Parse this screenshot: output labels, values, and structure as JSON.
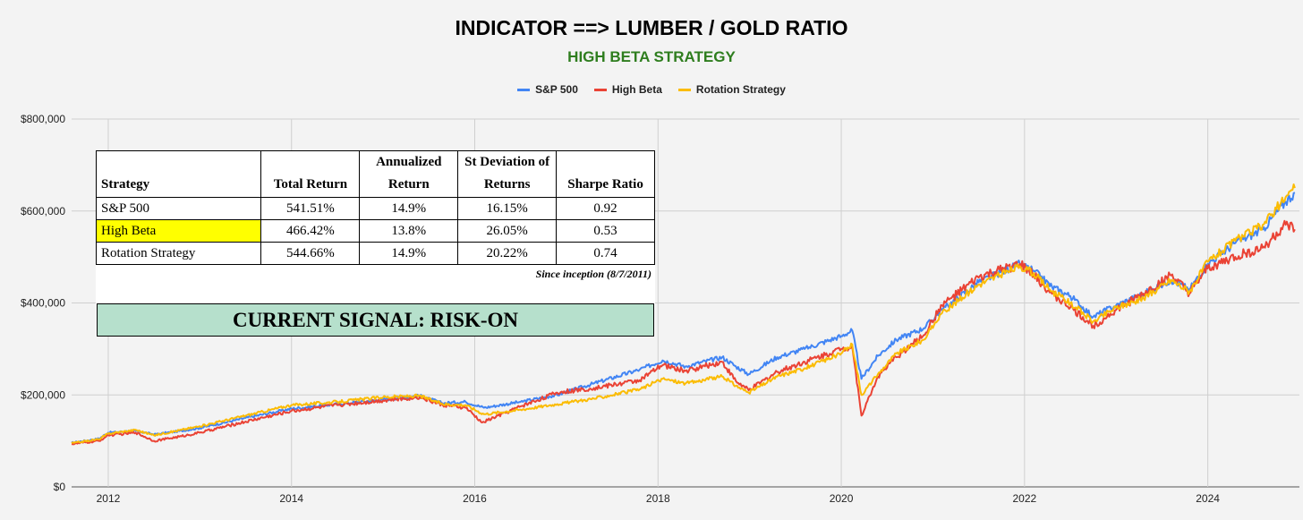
{
  "chart_data": {
    "type": "line",
    "title": "INDICATOR ==> LUMBER / GOLD RATIO",
    "subtitle": "HIGH BETA STRATEGY",
    "y_ticks": [
      "$0",
      "$200,000",
      "$400,000",
      "$600,000",
      "$800,000"
    ],
    "x_ticks": [
      "2012",
      "2014",
      "2016",
      "2018",
      "2020",
      "2022",
      "2024"
    ],
    "xlim": [
      2011.6,
      2025.0
    ],
    "ylim": [
      0,
      800000
    ],
    "series": [
      {
        "name": "S&P 500",
        "color": "#4285f4",
        "x": [
          2011.6,
          2011.9,
          2012.0,
          2012.3,
          2012.5,
          2012.8,
          2013.0,
          2013.5,
          2014.0,
          2014.5,
          2015.0,
          2015.4,
          2015.65,
          2015.9,
          2016.1,
          2016.5,
          2016.9,
          2017.3,
          2017.8,
          2018.05,
          2018.3,
          2018.7,
          2018.85,
          2018.99,
          2019.3,
          2019.6,
          2020.0,
          2020.12,
          2020.22,
          2020.4,
          2020.6,
          2020.9,
          2021.1,
          2021.5,
          2021.95,
          2022.1,
          2022.3,
          2022.5,
          2022.75,
          2023.0,
          2023.3,
          2023.6,
          2023.8,
          2024.0,
          2024.3,
          2024.6,
          2024.85,
          2024.95
        ],
        "values": [
          96000,
          105000,
          118000,
          122000,
          114000,
          122000,
          128000,
          150000,
          170000,
          180000,
          190000,
          198000,
          182000,
          185000,
          172000,
          185000,
          200000,
          225000,
          255000,
          275000,
          262000,
          282000,
          262000,
          245000,
          282000,
          300000,
          328000,
          340000,
          235000,
          285000,
          320000,
          345000,
          385000,
          445000,
          485000,
          470000,
          435000,
          415000,
          370000,
          395000,
          420000,
          450000,
          430000,
          485000,
          530000,
          560000,
          620000,
          640000
        ]
      },
      {
        "name": "High Beta",
        "color": "#ea4335",
        "x": [
          2011.6,
          2011.9,
          2012.0,
          2012.3,
          2012.5,
          2012.8,
          2013.0,
          2013.5,
          2014.0,
          2014.5,
          2015.0,
          2015.4,
          2015.65,
          2015.9,
          2016.08,
          2016.5,
          2016.9,
          2017.3,
          2017.8,
          2018.05,
          2018.3,
          2018.7,
          2018.85,
          2018.99,
          2019.3,
          2019.6,
          2020.0,
          2020.12,
          2020.22,
          2020.4,
          2020.6,
          2020.9,
          2021.1,
          2021.5,
          2021.95,
          2022.1,
          2022.3,
          2022.5,
          2022.75,
          2023.0,
          2023.3,
          2023.6,
          2023.8,
          2024.0,
          2024.3,
          2024.6,
          2024.85,
          2024.95
        ],
        "values": [
          93000,
          100000,
          112000,
          118000,
          100000,
          110000,
          118000,
          142000,
          165000,
          178000,
          188000,
          195000,
          178000,
          172000,
          140000,
          175000,
          205000,
          215000,
          232000,
          265000,
          252000,
          272000,
          230000,
          210000,
          250000,
          272000,
          300000,
          305000,
          155000,
          240000,
          282000,
          330000,
          395000,
          455000,
          485000,
          460000,
          420000,
          390000,
          350000,
          385000,
          420000,
          460000,
          420000,
          475000,
          500000,
          520000,
          570000,
          560000
        ]
      },
      {
        "name": "Rotation Strategy",
        "color": "#fbbc04",
        "x": [
          2011.6,
          2011.9,
          2012.0,
          2012.3,
          2012.5,
          2012.8,
          2013.0,
          2013.5,
          2014.0,
          2014.5,
          2015.0,
          2015.4,
          2015.65,
          2015.9,
          2016.1,
          2016.5,
          2016.9,
          2017.3,
          2017.8,
          2018.05,
          2018.3,
          2018.7,
          2018.85,
          2018.99,
          2019.3,
          2019.6,
          2020.0,
          2020.12,
          2020.22,
          2020.4,
          2020.6,
          2020.9,
          2021.1,
          2021.5,
          2021.95,
          2022.1,
          2022.3,
          2022.5,
          2022.75,
          2023.0,
          2023.3,
          2023.6,
          2023.8,
          2024.0,
          2024.3,
          2024.6,
          2024.85,
          2024.95
        ],
        "values": [
          95000,
          104000,
          116000,
          124000,
          112000,
          124000,
          132000,
          155000,
          178000,
          185000,
          195000,
          198000,
          180000,
          178000,
          158000,
          168000,
          180000,
          192000,
          212000,
          235000,
          225000,
          240000,
          220000,
          205000,
          240000,
          258000,
          290000,
          310000,
          200000,
          245000,
          290000,
          320000,
          378000,
          440000,
          480000,
          465000,
          425000,
          400000,
          360000,
          390000,
          410000,
          450000,
          425000,
          490000,
          535000,
          570000,
          630000,
          650000
        ]
      }
    ]
  },
  "legend": [
    {
      "label": "S&P 500",
      "color": "#4285f4"
    },
    {
      "label": "High Beta",
      "color": "#ea4335"
    },
    {
      "label": "Rotation Strategy",
      "color": "#fbbc04"
    }
  ],
  "table": {
    "headers": [
      "Strategy",
      "Total Return",
      "Annualized Return",
      "St Deviation of Returns",
      "Sharpe Ratio"
    ],
    "rows": [
      [
        "S&P 500",
        "541.51%",
        "14.9%",
        "16.15%",
        "0.92"
      ],
      [
        "High Beta",
        "466.42%",
        "13.8%",
        "26.05%",
        "0.53"
      ],
      [
        "Rotation Strategy",
        "544.66%",
        "14.9%",
        "20.22%",
        "0.74"
      ]
    ],
    "highlight_color": "#ffff00",
    "footnote": "Since inception (8/7/2011)"
  },
  "signal": {
    "text": "CURRENT SIGNAL: RISK-ON",
    "color": "#b6e0cc"
  }
}
